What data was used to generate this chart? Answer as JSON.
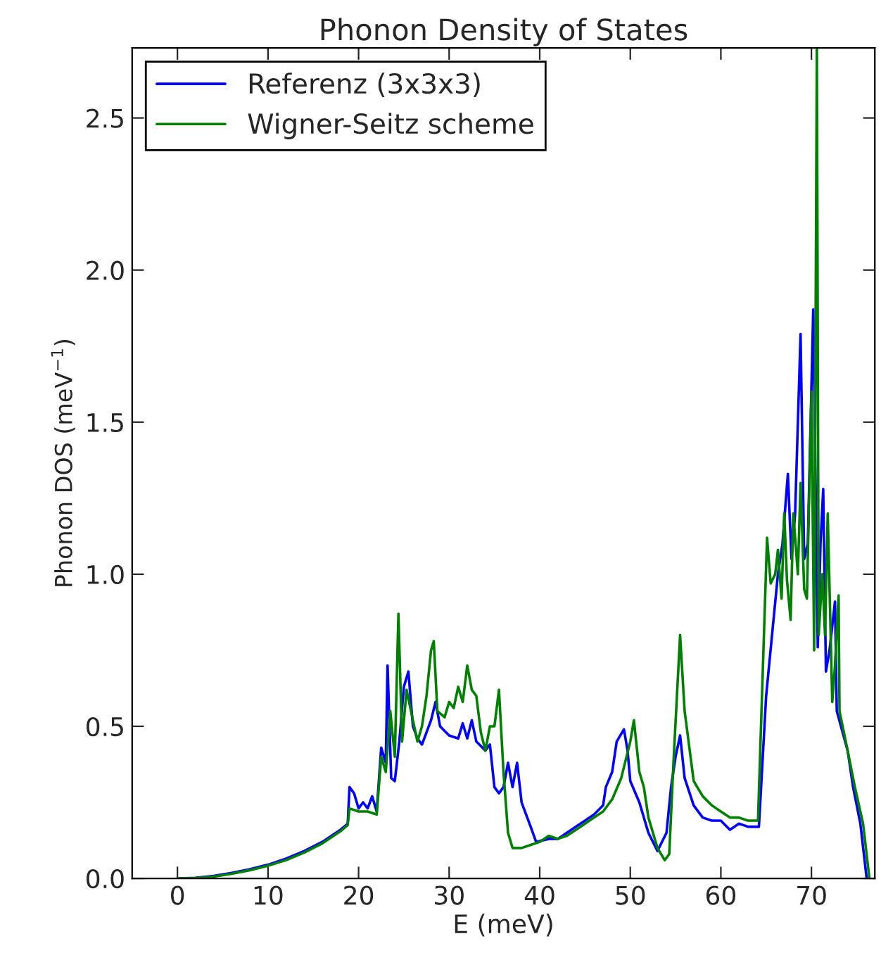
{
  "chart_data": {
    "type": "line",
    "title": "Phonon Density of States",
    "xlabel": "E (meV)",
    "ylabel": "Phonon DOS (meV$^{−1}$)",
    "xlim": [
      -5,
      77
    ],
    "xticks": [
      0,
      10,
      20,
      30,
      40,
      50,
      60,
      70
    ],
    "ylim": [
      0,
      2.73
    ],
    "yticks": [
      {
        "value": 0,
        "label": "0.0"
      },
      0.5,
      {
        "value": 1,
        "label": "1.0"
      },
      1.5,
      {
        "value": 2,
        "label": "2.0"
      },
      2.5
    ],
    "grid": false,
    "legend": "top left",
    "marker": "none",
    "line_style": "solid",
    "series": [
      {
        "name": "Referenz (3x3x3)",
        "color": "#0000ff",
        "x": [
          0,
          2,
          4,
          6,
          8,
          10,
          12,
          14,
          16,
          18,
          18.8,
          19,
          19.5,
          20,
          20.5,
          21,
          21.5,
          22,
          22.5,
          23,
          23.2,
          23.6,
          24,
          24.5,
          25,
          25.5,
          26,
          26.5,
          27,
          28,
          28.5,
          29,
          30,
          31,
          31.5,
          32,
          32.5,
          33,
          34,
          34.5,
          35,
          35.5,
          36,
          36.5,
          37,
          37.5,
          38,
          39,
          39.6,
          41,
          42,
          43,
          44,
          45,
          46,
          47,
          47.3,
          48,
          48.5,
          49.3,
          49.7,
          50,
          51,
          52,
          53,
          54,
          54.5,
          55,
          55.5,
          56,
          57,
          58,
          59,
          60,
          61,
          62,
          63,
          64.2,
          65,
          66.3,
          66.8,
          67.4,
          67.8,
          68.2,
          68.8,
          69.2,
          69.6,
          70.2,
          70.7,
          71,
          71.3,
          71.6,
          72,
          72.6,
          72.8,
          74,
          74.6,
          75.4,
          76.1
        ],
        "values": [
          0,
          0.002,
          0.008,
          0.018,
          0.03,
          0.045,
          0.065,
          0.09,
          0.12,
          0.16,
          0.18,
          0.3,
          0.28,
          0.23,
          0.25,
          0.23,
          0.27,
          0.22,
          0.43,
          0.38,
          0.7,
          0.33,
          0.32,
          0.45,
          0.63,
          0.68,
          0.5,
          0.46,
          0.44,
          0.52,
          0.58,
          0.5,
          0.47,
          0.46,
          0.51,
          0.46,
          0.52,
          0.45,
          0.42,
          0.44,
          0.3,
          0.28,
          0.3,
          0.38,
          0.3,
          0.38,
          0.25,
          0.17,
          0.12,
          0.13,
          0.13,
          0.15,
          0.17,
          0.19,
          0.21,
          0.24,
          0.3,
          0.35,
          0.45,
          0.49,
          0.42,
          0.32,
          0.25,
          0.15,
          0.09,
          0.15,
          0.3,
          0.4,
          0.47,
          0.33,
          0.24,
          0.2,
          0.19,
          0.19,
          0.16,
          0.18,
          0.17,
          0.17,
          0.6,
          1.0,
          1.1,
          1.33,
          1.05,
          1.2,
          1.79,
          1.05,
          1.1,
          1.87,
          0.76,
          1.1,
          1.28,
          0.68,
          0.75,
          0.91,
          0.55,
          0.42,
          0.3,
          0.18,
          0.0
        ]
      },
      {
        "name": "Wigner-Seitz scheme",
        "color": "#008000",
        "x": [
          0,
          2,
          4,
          6,
          8,
          10,
          12,
          14,
          16,
          18,
          18.8,
          19,
          20,
          21,
          22,
          22.5,
          23,
          23.5,
          24,
          24.4,
          24.8,
          25.3,
          26,
          26.5,
          27,
          27.5,
          28,
          28.3,
          28.7,
          29.5,
          30,
          30.5,
          31,
          31.5,
          32,
          32.5,
          33,
          33.5,
          34,
          34.5,
          35,
          35.5,
          36,
          36.5,
          37,
          38,
          39,
          40,
          41,
          42,
          43,
          44,
          45,
          46,
          47,
          48,
          49,
          50,
          50.4,
          51,
          51.5,
          52,
          53,
          53.8,
          54.3,
          54.8,
          55.5,
          56,
          57,
          58,
          59,
          60,
          61,
          62,
          63,
          64.1,
          65.1,
          65.5,
          66,
          66.3,
          66.7,
          67,
          67.3,
          67.7,
          68,
          68.5,
          68.8,
          69.2,
          69.5,
          70,
          70.3,
          70.6,
          70.8,
          71.2,
          71.5,
          71.8,
          72.3,
          72.6,
          73,
          73.1,
          74,
          74.8,
          75.7,
          76.4
        ],
        "values": [
          0,
          0.001,
          0.006,
          0.015,
          0.027,
          0.042,
          0.06,
          0.085,
          0.115,
          0.155,
          0.175,
          0.23,
          0.22,
          0.22,
          0.21,
          0.4,
          0.35,
          0.55,
          0.4,
          0.87,
          0.45,
          0.62,
          0.52,
          0.45,
          0.5,
          0.6,
          0.75,
          0.78,
          0.55,
          0.53,
          0.58,
          0.56,
          0.63,
          0.58,
          0.7,
          0.62,
          0.6,
          0.48,
          0.42,
          0.5,
          0.5,
          0.62,
          0.35,
          0.15,
          0.1,
          0.1,
          0.11,
          0.12,
          0.14,
          0.13,
          0.14,
          0.16,
          0.18,
          0.2,
          0.22,
          0.26,
          0.33,
          0.45,
          0.52,
          0.35,
          0.3,
          0.2,
          0.1,
          0.06,
          0.08,
          0.4,
          0.8,
          0.55,
          0.32,
          0.27,
          0.24,
          0.22,
          0.2,
          0.2,
          0.19,
          0.19,
          1.12,
          0.97,
          1.0,
          1.08,
          0.92,
          1.2,
          0.98,
          0.85,
          1.2,
          1.0,
          1.3,
          0.95,
          0.92,
          1.6,
          0.75,
          2.73,
          0.8,
          1.0,
          0.8,
          1.2,
          0.58,
          0.7,
          0.93,
          0.55,
          0.42,
          0.3,
          0.18,
          0.0
        ]
      }
    ]
  }
}
